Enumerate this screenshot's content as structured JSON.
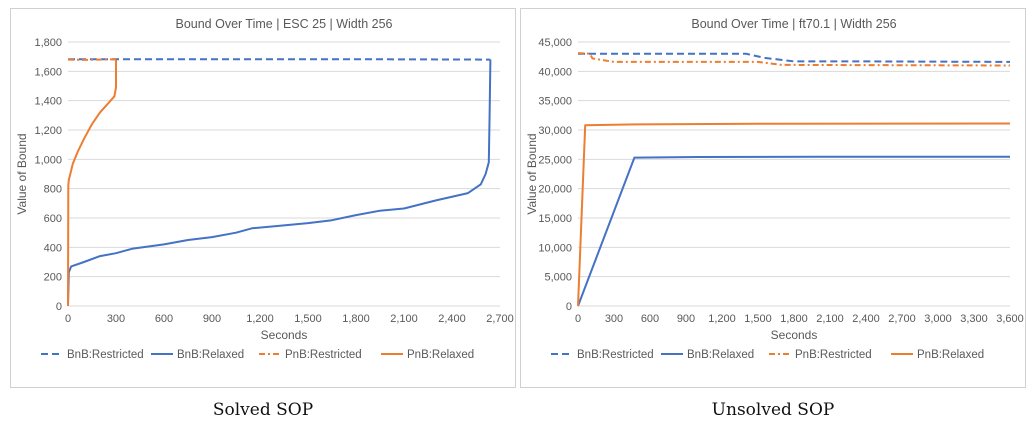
{
  "captions": [
    "Solved SOP",
    "Unsolved SOP"
  ],
  "colors": {
    "bnb": "#4472C4",
    "pnb": "#ED7D31",
    "grid": "#D9D9D9",
    "text": "#595959",
    "frame": "#D0D0D0"
  },
  "chart_data": [
    {
      "type": "line",
      "title": "Bound Over Time | ESC 25 | Width 256",
      "xlabel": "Seconds",
      "ylabel": "Value of Bound",
      "xlim": [
        0,
        2700
      ],
      "ylim": [
        0,
        1800
      ],
      "xticks": [
        "0",
        "300",
        "600",
        "900",
        "1,200",
        "1,500",
        "1,800",
        "2,100",
        "2,400",
        "2,700"
      ],
      "yticks": [
        "0",
        "200",
        "400",
        "600",
        "800",
        "1,000",
        "1,200",
        "1,400",
        "1,600",
        "1,800"
      ],
      "legend_position": "bottom",
      "series": [
        {
          "name": "BnB:Restricted",
          "color": "#4472C4",
          "dash": "dashed",
          "x": [
            0,
            300,
            1000,
            2000,
            2640
          ],
          "y": [
            1683,
            1683,
            1683,
            1682,
            1680
          ]
        },
        {
          "name": "BnB:Relaxed",
          "color": "#4472C4",
          "dash": "solid",
          "x": [
            0,
            5,
            20,
            100,
            200,
            300,
            400,
            600,
            750,
            900,
            1050,
            1150,
            1300,
            1500,
            1650,
            1800,
            1950,
            2100,
            2300,
            2500,
            2580,
            2610,
            2630,
            2635,
            2640
          ],
          "y": [
            0,
            230,
            270,
            300,
            340,
            360,
            390,
            420,
            450,
            470,
            500,
            530,
            545,
            565,
            585,
            620,
            650,
            665,
            720,
            770,
            830,
            900,
            980,
            1300,
            1680
          ]
        },
        {
          "name": "PnB:Restricted",
          "color": "#ED7D31",
          "dash": "dashdot",
          "x": [
            0,
            100,
            200,
            300
          ],
          "y": [
            1680,
            1678,
            1680,
            1682
          ]
        },
        {
          "name": "PnB:Relaxed",
          "color": "#ED7D31",
          "dash": "solid",
          "x": [
            0,
            2,
            5,
            10,
            30,
            60,
            100,
            150,
            200,
            250,
            290,
            300,
            300
          ],
          "y": [
            0,
            820,
            860,
            880,
            970,
            1050,
            1140,
            1240,
            1320,
            1380,
            1430,
            1490,
            1680
          ]
        }
      ]
    },
    {
      "type": "line",
      "title": "Bound Over Time | ft70.1 | Width 256",
      "xlabel": "Seconds",
      "ylabel": "Value of Bound",
      "xlim": [
        0,
        3600
      ],
      "ylim": [
        0,
        45000
      ],
      "xticks": [
        "0",
        "300",
        "600",
        "900",
        "1,200",
        "1,500",
        "1,800",
        "2,100",
        "2,400",
        "2,700",
        "3,000",
        "3,300",
        "3,600"
      ],
      "yticks": [
        "0",
        "5,000",
        "10,000",
        "15,000",
        "20,000",
        "25,000",
        "30,000",
        "35,000",
        "40,000",
        "45,000"
      ],
      "legend_position": "bottom",
      "series": [
        {
          "name": "BnB:Restricted",
          "color": "#4472C4",
          "dash": "dashed",
          "x": [
            0,
            1400,
            1550,
            1800,
            2400,
            3600
          ],
          "y": [
            43000,
            43000,
            42300,
            41700,
            41700,
            41600
          ]
        },
        {
          "name": "BnB:Relaxed",
          "color": "#4472C4",
          "dash": "solid",
          "x": [
            0,
            470,
            1000,
            2000,
            3600
          ],
          "y": [
            0,
            25300,
            25400,
            25450,
            25450
          ]
        },
        {
          "name": "PnB:Restricted",
          "color": "#ED7D31",
          "dash": "dashdot",
          "x": [
            0,
            100,
            120,
            300,
            1500,
            1700,
            3600
          ],
          "y": [
            43100,
            43000,
            42200,
            41600,
            41600,
            41100,
            41000
          ]
        },
        {
          "name": "PnB:Relaxed",
          "color": "#ED7D31",
          "dash": "solid",
          "x": [
            0,
            60,
            500,
            1500,
            3600
          ],
          "y": [
            0,
            30800,
            30950,
            31050,
            31100
          ]
        }
      ]
    }
  ]
}
